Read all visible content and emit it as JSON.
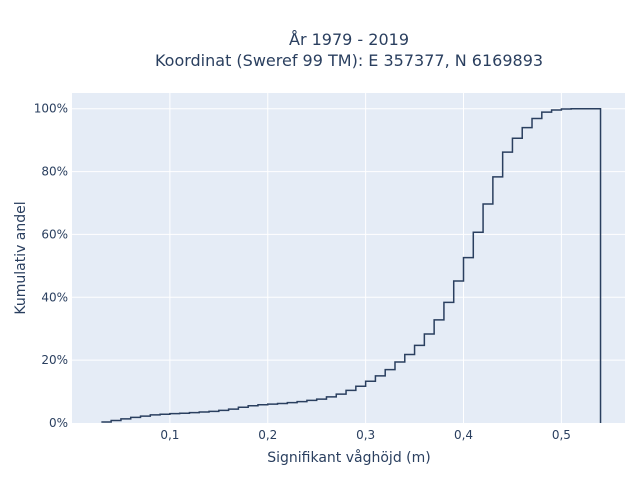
{
  "chart_data": {
    "type": "line",
    "title_line1": "År 1979 - 2019",
    "title_line2": "Koordinat (Sweref 99 TM): E 357377, N 6169893",
    "xlabel": "Signifikant våghöjd (m)",
    "ylabel": "Kumulativ andel",
    "xlim": [
      0.0,
      0.565
    ],
    "ylim": [
      0,
      105
    ],
    "x_ticks": [
      {
        "value": 0.1,
        "label": "0,1"
      },
      {
        "value": 0.2,
        "label": "0,2"
      },
      {
        "value": 0.3,
        "label": "0,3"
      },
      {
        "value": 0.4,
        "label": "0,4"
      },
      {
        "value": 0.5,
        "label": "0,5"
      }
    ],
    "y_ticks": [
      {
        "value": 0,
        "label": "0%"
      },
      {
        "value": 20,
        "label": "20%"
      },
      {
        "value": 40,
        "label": "40%"
      },
      {
        "value": 60,
        "label": "60%"
      },
      {
        "value": 80,
        "label": "80%"
      },
      {
        "value": 100,
        "label": "100%"
      }
    ],
    "grid": true,
    "line_color": "#2a3f5f",
    "step_x": [
      0.03,
      0.04,
      0.05,
      0.06,
      0.07,
      0.08,
      0.09,
      0.1,
      0.11,
      0.12,
      0.13,
      0.14,
      0.15,
      0.16,
      0.17,
      0.18,
      0.19,
      0.2,
      0.21,
      0.22,
      0.23,
      0.24,
      0.25,
      0.26,
      0.27,
      0.28,
      0.29,
      0.3,
      0.31,
      0.32,
      0.33,
      0.34,
      0.35,
      0.36,
      0.37,
      0.38,
      0.39,
      0.4,
      0.41,
      0.42,
      0.43,
      0.44,
      0.45,
      0.46,
      0.47,
      0.48,
      0.49,
      0.5,
      0.51,
      0.52,
      0.53,
      0.54
    ],
    "step_y": [
      0.3,
      0.8,
      1.3,
      1.8,
      2.2,
      2.6,
      2.8,
      3.0,
      3.1,
      3.3,
      3.5,
      3.7,
      4.0,
      4.4,
      5.0,
      5.5,
      5.8,
      6.0,
      6.2,
      6.5,
      6.8,
      7.2,
      7.6,
      8.3,
      9.2,
      10.4,
      11.7,
      13.3,
      15.0,
      17.0,
      19.4,
      21.8,
      24.7,
      28.3,
      32.8,
      38.4,
      45.2,
      52.6,
      60.7,
      69.7,
      78.3,
      86.2,
      90.6,
      94.0,
      96.9,
      98.9,
      99.6,
      99.9,
      100.0,
      100.0,
      100.0,
      100.0
    ],
    "final_drop_x": 0.54
  }
}
